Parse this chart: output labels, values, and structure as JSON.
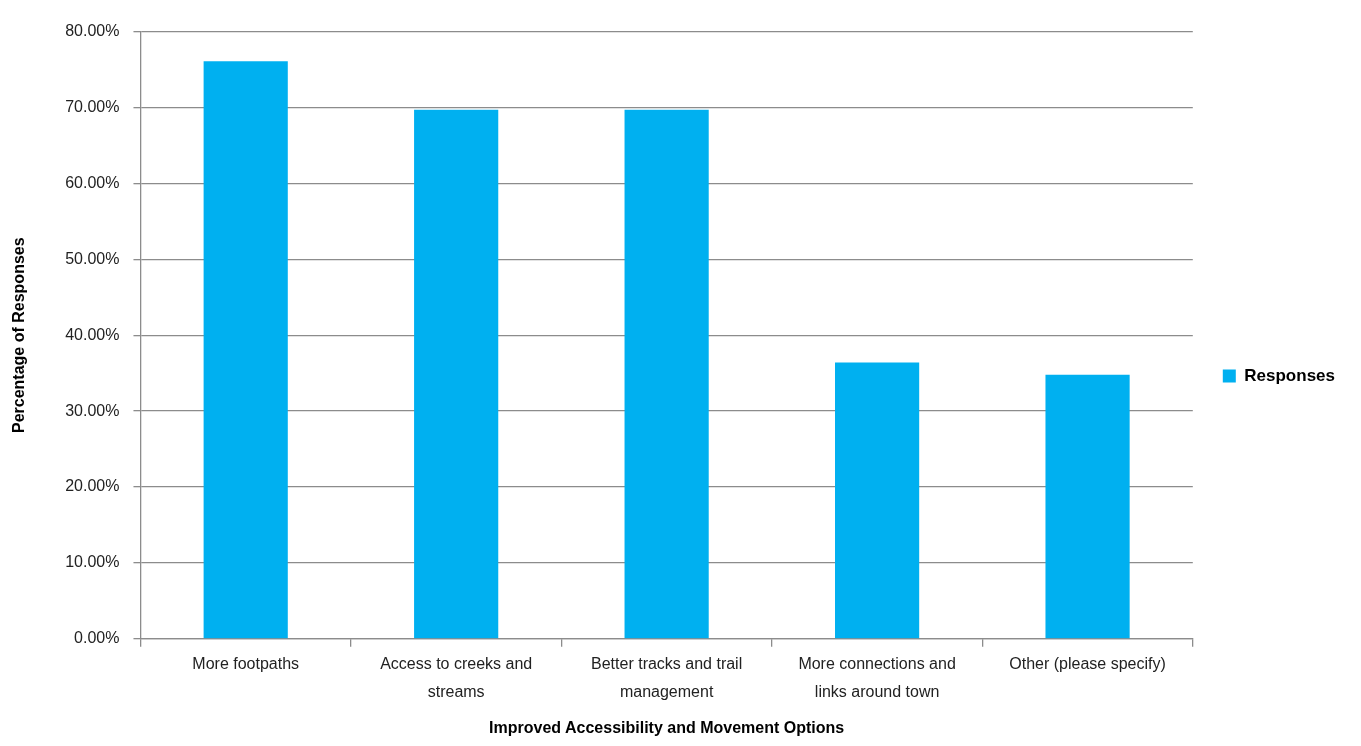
{
  "chart_data": {
    "type": "bar",
    "xlabel": "Improved Accessibility and Movement Options",
    "ylabel": "Percentage of Responses",
    "categories": [
      "More footpaths",
      "Access to creeks and streams",
      "Better tracks and trail management",
      "More connections and links around town",
      "Other (please specify)"
    ],
    "series": [
      {
        "name": "Responses",
        "color": "#00b0f0",
        "values": [
          76.1,
          69.7,
          69.7,
          36.4,
          34.8
        ]
      }
    ],
    "ylim": [
      0,
      80
    ],
    "yticks": [
      {
        "value": 0,
        "label": "0.00%"
      },
      {
        "value": 10,
        "label": "10.00%"
      },
      {
        "value": 20,
        "label": "20.00%"
      },
      {
        "value": 30,
        "label": "30.00%"
      },
      {
        "value": 40,
        "label": "40.00%"
      },
      {
        "value": 50,
        "label": "50.00%"
      },
      {
        "value": 60,
        "label": "60.00%"
      },
      {
        "value": 70,
        "label": "70.00%"
      },
      {
        "value": 80,
        "label": "80.00%"
      }
    ],
    "grid": "y",
    "legend": "right"
  }
}
